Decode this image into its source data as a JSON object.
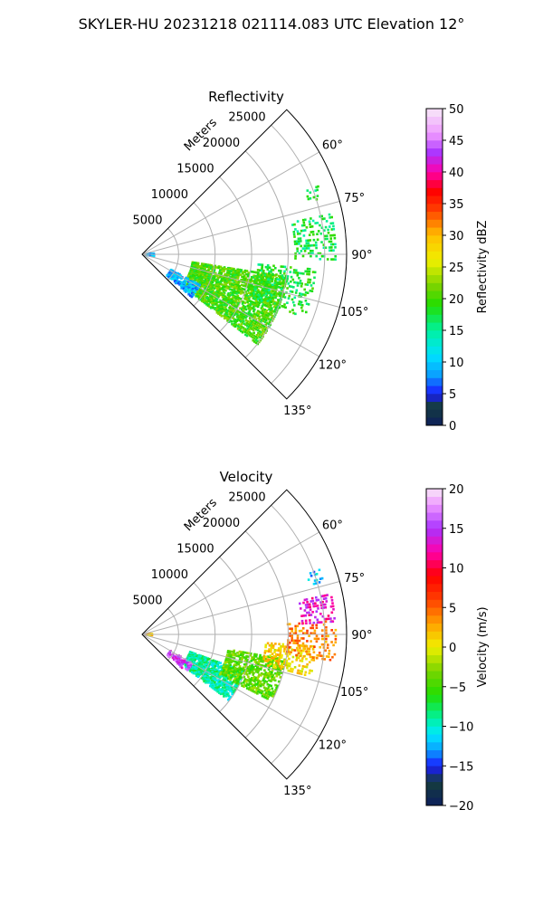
{
  "figure_title": "SKYLER-HU  20231218  021114.083 UTC Elevation 12°",
  "chart_data": [
    {
      "type": "heatmap",
      "projection": "polar-sector",
      "title": "Reflectivity",
      "radial_label": "Meters",
      "radial_ticks": [
        5000,
        10000,
        15000,
        20000,
        25000
      ],
      "radial_tick_labels": [
        "5000",
        "10000",
        "15000",
        "20000",
        "25000"
      ],
      "theta_ticks": [
        60,
        75,
        90,
        105,
        120,
        135
      ],
      "theta_tick_labels": [
        "60°",
        "75°",
        "90°",
        "105°",
        "120°",
        "135°"
      ],
      "theta_range_deg": [
        45,
        135
      ],
      "r_range_m": [
        0,
        28000
      ],
      "grid": true,
      "colorbar": {
        "label": "Reflectivity dBZ",
        "range": [
          0,
          50
        ],
        "ticks": [
          0,
          5,
          10,
          15,
          20,
          25,
          30,
          35,
          40,
          45,
          50
        ],
        "tick_labels": [
          "0",
          "5",
          "10",
          "15",
          "20",
          "25",
          "30",
          "35",
          "40",
          "45",
          "50"
        ],
        "stops": [
          [
            0,
            "#0d1f5c"
          ],
          [
            3,
            "#153d3d"
          ],
          [
            5,
            "#1a1aff"
          ],
          [
            8,
            "#0aa0ff"
          ],
          [
            11,
            "#00e0ff"
          ],
          [
            15,
            "#00f2a0"
          ],
          [
            19,
            "#22dd00"
          ],
          [
            22,
            "#7ad400"
          ],
          [
            26,
            "#f0f000"
          ],
          [
            30,
            "#ffbf00"
          ],
          [
            34,
            "#ff4000"
          ],
          [
            37,
            "#ff0000"
          ],
          [
            40,
            "#ff00aa"
          ],
          [
            43,
            "#aa33ff"
          ],
          [
            46,
            "#ee99ff"
          ],
          [
            50,
            "#f8e8f8"
          ]
        ]
      },
      "echo_regions": [
        {
          "az": [
            99,
            128
          ],
          "r_m": [
            7000,
            20000
          ],
          "value": 20,
          "density": 0.75
        },
        {
          "az": [
            95,
            112
          ],
          "r_m": [
            16000,
            24000
          ],
          "value": 18,
          "density": 0.35
        },
        {
          "az": [
            78,
            92
          ],
          "r_m": [
            21000,
            26500
          ],
          "value": 17,
          "density": 0.35
        },
        {
          "az": [
            68,
            73
          ],
          "r_m": [
            24000,
            26000
          ],
          "value": 17,
          "density": 0.25
        },
        {
          "az": [
            118,
            131
          ],
          "r_m": [
            4500,
            9000
          ],
          "value": 9,
          "density": 0.55
        },
        {
          "az": [
            86,
            100
          ],
          "r_m": [
            300,
            1600
          ],
          "value": 9,
          "density": 0.6
        }
      ]
    },
    {
      "type": "heatmap",
      "projection": "polar-sector",
      "title": "Velocity",
      "radial_label": "Meters",
      "radial_ticks": [
        5000,
        10000,
        15000,
        20000,
        25000
      ],
      "radial_tick_labels": [
        "5000",
        "10000",
        "15000",
        "20000",
        "25000"
      ],
      "theta_ticks": [
        60,
        75,
        90,
        105,
        120,
        135
      ],
      "theta_tick_labels": [
        "60°",
        "75°",
        "90°",
        "105°",
        "120°",
        "135°"
      ],
      "theta_range_deg": [
        45,
        135
      ],
      "r_range_m": [
        0,
        28000
      ],
      "grid": true,
      "colorbar": {
        "label": "Velocity (m/s)",
        "range": [
          -20,
          20
        ],
        "ticks": [
          -20,
          -15,
          -10,
          -5,
          0,
          5,
          10,
          15,
          20
        ],
        "tick_labels": [
          "−20",
          "−15",
          "−10",
          "−5",
          "0",
          "5",
          "10",
          "15",
          "20"
        ],
        "stops": [
          [
            -20,
            "#0d1f5c"
          ],
          [
            -17,
            "#153d3d"
          ],
          [
            -15,
            "#1a1aff"
          ],
          [
            -13,
            "#0aa0ff"
          ],
          [
            -11,
            "#00e8ff"
          ],
          [
            -9,
            "#00f2a0"
          ],
          [
            -6,
            "#22dd00"
          ],
          [
            -3,
            "#7ad400"
          ],
          [
            0,
            "#f0f000"
          ],
          [
            3,
            "#ffa000"
          ],
          [
            6,
            "#ff4000"
          ],
          [
            9,
            "#ff0000"
          ],
          [
            12,
            "#ff00aa"
          ],
          [
            15,
            "#aa33ff"
          ],
          [
            18,
            "#ee99ff"
          ],
          [
            20,
            "#f8e8f8"
          ]
        ]
      },
      "echo_regions": [
        {
          "az": [
            110,
            128
          ],
          "r_m": [
            7000,
            15000
          ],
          "value": -9,
          "density": 0.75
        },
        {
          "az": [
            100,
            118
          ],
          "r_m": [
            12000,
            20000
          ],
          "value": -4,
          "density": 0.65
        },
        {
          "az": [
            94,
            104
          ],
          "r_m": [
            17000,
            24000
          ],
          "value": 1,
          "density": 0.45
        },
        {
          "az": [
            86,
            98
          ],
          "r_m": [
            20000,
            26500
          ],
          "value": 4,
          "density": 0.4
        },
        {
          "az": [
            78,
            87
          ],
          "r_m": [
            22000,
            26500
          ],
          "value": 13,
          "density": 0.4
        },
        {
          "az": [
            120,
            130
          ],
          "r_m": [
            4500,
            8000
          ],
          "value": 15,
          "density": 0.4
        },
        {
          "az": [
            70,
            74
          ],
          "r_m": [
            24000,
            26000
          ],
          "value": -12,
          "density": 0.25
        },
        {
          "az": [
            87,
            95
          ],
          "r_m": [
            300,
            1500
          ],
          "value": 2,
          "density": 0.55
        }
      ]
    }
  ]
}
